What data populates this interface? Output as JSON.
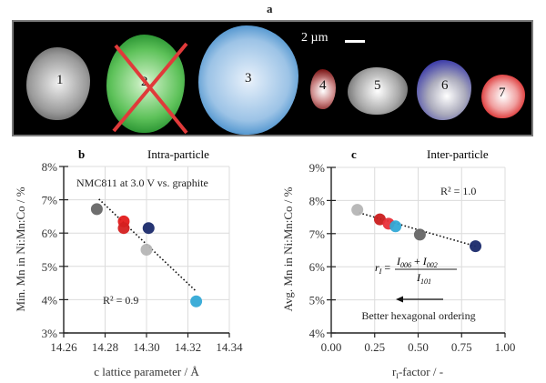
{
  "figure": {
    "panel_a": {
      "label": "a",
      "scale_bar": "2 µm",
      "particles": [
        {
          "number": "1",
          "color": "#bdbdbd",
          "excluded": false
        },
        {
          "number": "2",
          "color": "#3cb043",
          "excluded": true
        },
        {
          "number": "3",
          "color": "#3a8fd0",
          "excluded": false
        },
        {
          "number": "4",
          "color": "#8b1a1a",
          "excluded": false
        },
        {
          "number": "5",
          "color": "#c8c8c8",
          "excluded": false
        },
        {
          "number": "6",
          "color": "#3a3ab8",
          "excluded": false
        },
        {
          "number": "7",
          "color": "#e02020",
          "excluded": false
        }
      ]
    }
  },
  "chart_data": [
    {
      "type": "scatter",
      "panel_label": "b",
      "title": "Intra-particle",
      "annotation": "NMC811 at 3.0 V vs. graphite",
      "r2_label": "R² = 0.9",
      "xlabel": "c lattice parameter / Å",
      "ylabel": "Min. Mn in Ni:Mn:Co / %",
      "xlim": [
        14.26,
        14.34
      ],
      "ylim": [
        3,
        8
      ],
      "xticks": [
        "14.26",
        "14.28",
        "14.30",
        "14.32",
        "14.34"
      ],
      "yticks": [
        "3%",
        "4%",
        "5%",
        "6%",
        "7%",
        "8%"
      ],
      "grid": true,
      "points": [
        {
          "x": 14.276,
          "y": 6.72,
          "color": "#666666"
        },
        {
          "x": 14.289,
          "y": 6.35,
          "color": "#e31b1b"
        },
        {
          "x": 14.289,
          "y": 6.15,
          "color": "#d42020"
        },
        {
          "x": 14.301,
          "y": 6.15,
          "color": "#1a2a6c"
        },
        {
          "x": 14.3,
          "y": 5.5,
          "color": "#b5b5b5"
        },
        {
          "x": 14.324,
          "y": 3.95,
          "color": "#33a9d6"
        }
      ],
      "trendline": {
        "x": [
          14.277,
          14.324
        ],
        "y": [
          7.02,
          4.25
        ]
      }
    },
    {
      "type": "scatter",
      "panel_label": "c",
      "title": "Inter-particle",
      "r2_label": "R² = 1.0",
      "formula": {
        "lhs": "r",
        "lhs_sub": "I",
        "eq": "=",
        "num_a": "I",
        "num_a_sub": "006",
        "plus": "+",
        "num_b": "I",
        "num_b_sub": "002",
        "den": "I",
        "den_sub": "101"
      },
      "arrow_label": "Better hexagonal ordering",
      "xlabel": "r",
      "xlabel_sub": "I",
      "xlabel_rest": "-factor / -",
      "ylabel": "Avg. Mn in Ni:Mn:Co / %",
      "xlim": [
        0,
        1
      ],
      "ylim": [
        4,
        9
      ],
      "xticks": [
        "0.00",
        "0.25",
        "0.50",
        "0.75",
        "1.00"
      ],
      "yticks": [
        "4%",
        "5%",
        "6%",
        "7%",
        "8%",
        "9%"
      ],
      "grid": true,
      "points": [
        {
          "x": 0.15,
          "y": 7.72,
          "color": "#b5b5b5"
        },
        {
          "x": 0.28,
          "y": 7.43,
          "color": "#c91c1c"
        },
        {
          "x": 0.33,
          "y": 7.3,
          "color": "#e8303a"
        },
        {
          "x": 0.37,
          "y": 7.22,
          "color": "#33a9d6"
        },
        {
          "x": 0.51,
          "y": 6.97,
          "color": "#666666"
        },
        {
          "x": 0.83,
          "y": 6.62,
          "color": "#1a2a6c"
        }
      ],
      "trendline": {
        "x": [
          0.16,
          0.83
        ],
        "y": [
          7.63,
          6.62
        ]
      }
    }
  ]
}
